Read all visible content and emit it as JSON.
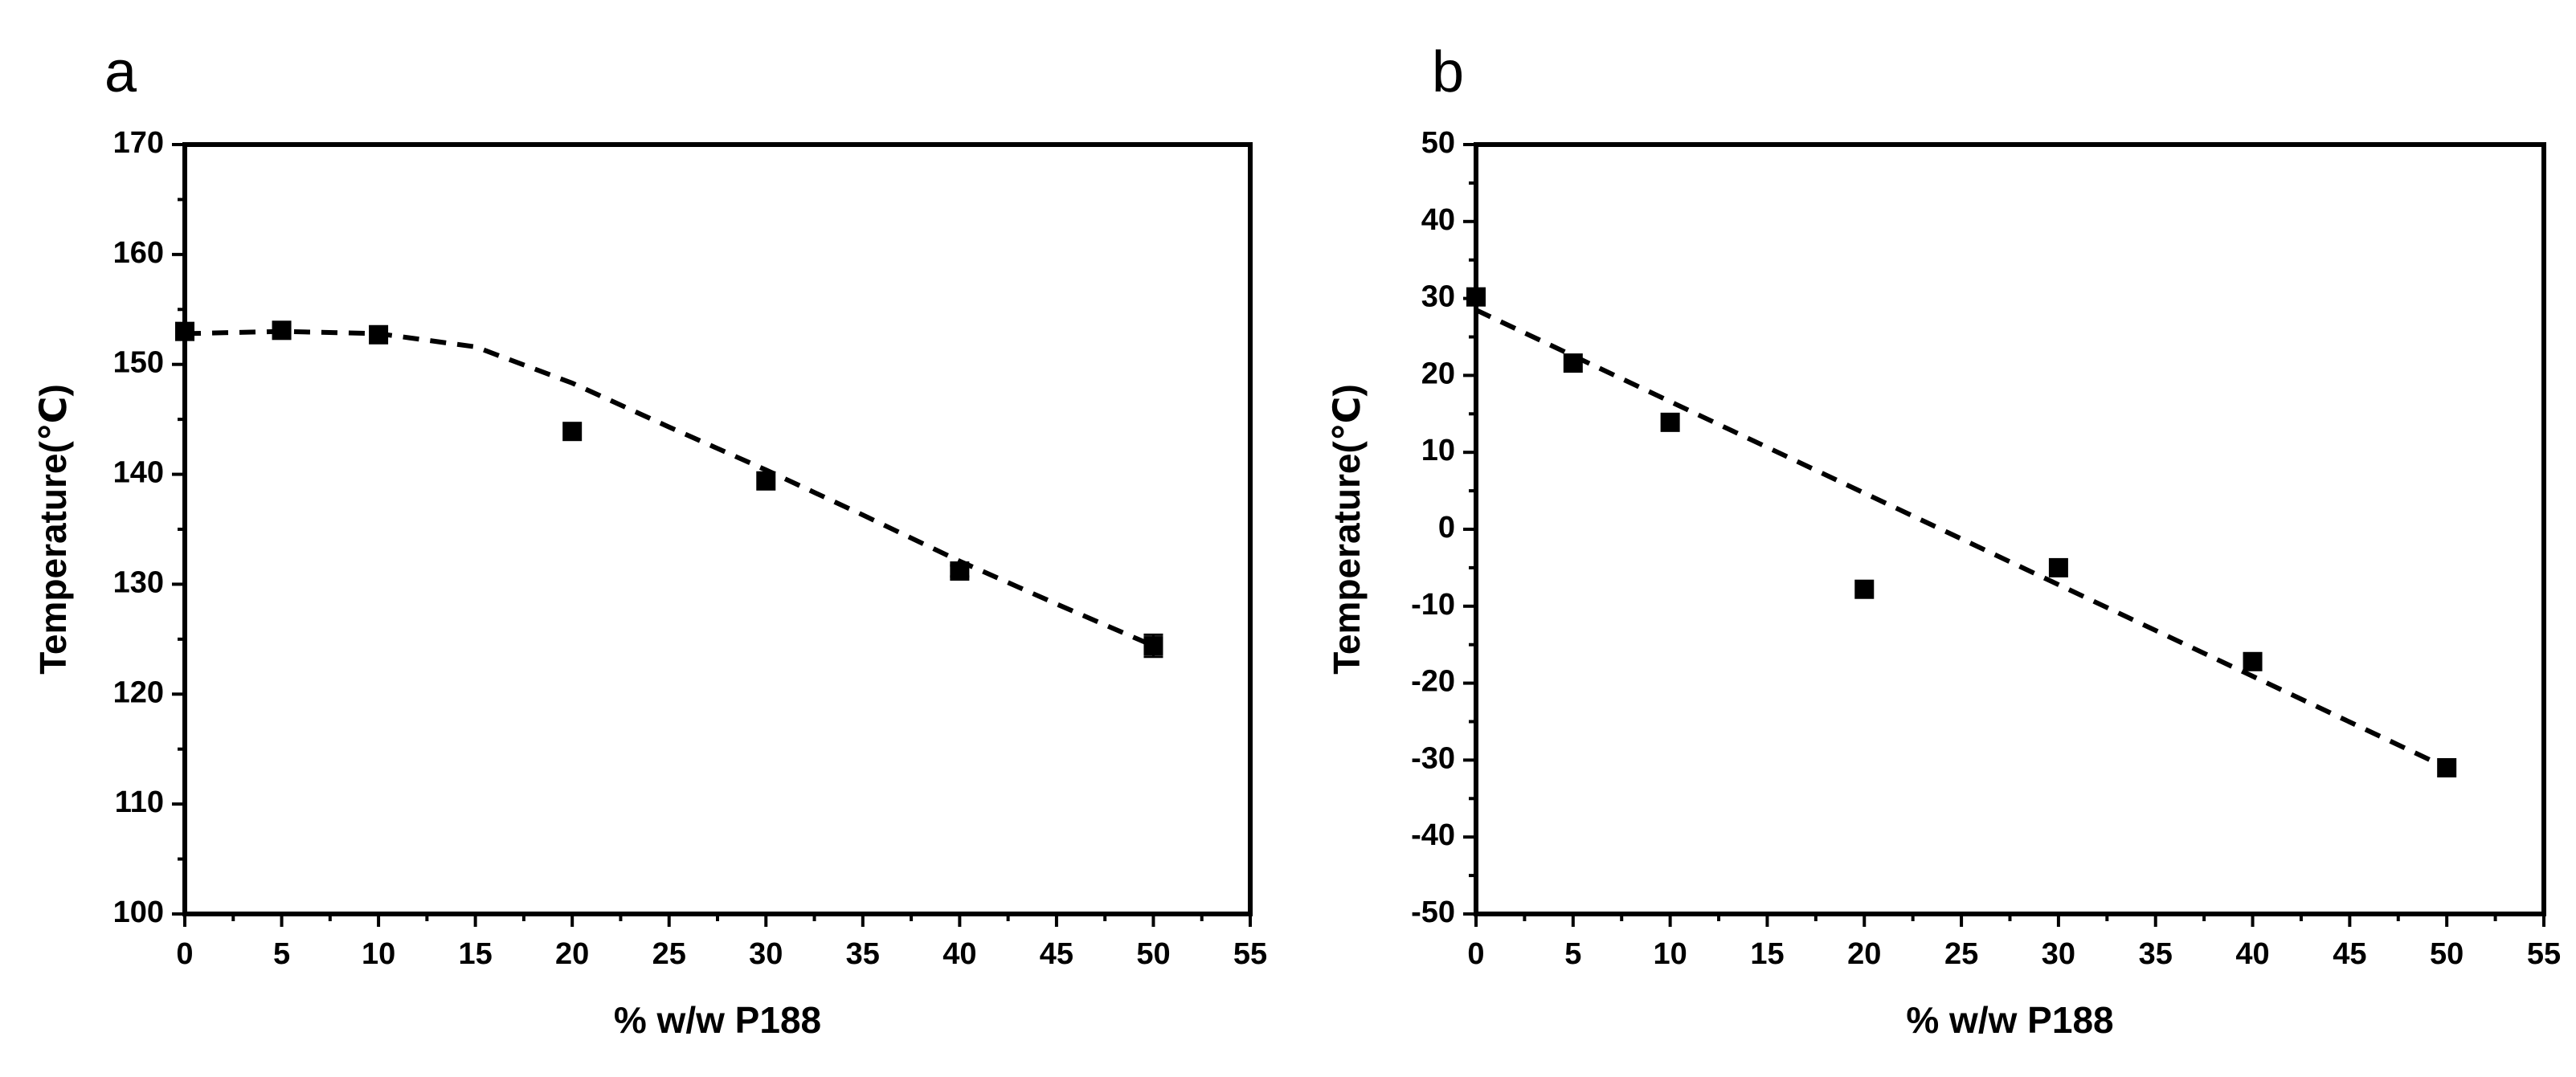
{
  "chart_data": [
    {
      "type": "scatter",
      "panel_label": "a",
      "xlabel": "% w/w P188",
      "ylabel": "Temperature(℃)",
      "xlim": [
        0,
        55
      ],
      "ylim": [
        100,
        170
      ],
      "xticks": [
        "0",
        "5",
        "10",
        "15",
        "20",
        "25",
        "30",
        "35",
        "40",
        "45",
        "50",
        "55"
      ],
      "yticks": [
        "100",
        "110",
        "120",
        "130",
        "140",
        "150",
        "160",
        "170"
      ],
      "grid": false,
      "series": [
        {
          "kind": "points",
          "marker": "square",
          "x": [
            0,
            5,
            10,
            20,
            30,
            40,
            50
          ],
          "y": [
            153.0,
            153.1,
            152.7,
            143.9,
            139.4,
            131.2,
            124.4
          ],
          "error": [
            0,
            0,
            0,
            0,
            0,
            0.5,
            1.0
          ]
        },
        {
          "kind": "fit",
          "style": "dashed",
          "x": [
            0,
            5,
            10,
            15,
            20,
            25,
            30,
            35,
            40,
            45,
            50
          ],
          "y": [
            152.8,
            153.0,
            152.8,
            151.6,
            148.3,
            144.3,
            140.4,
            136.3,
            132.1,
            128.2,
            124.4
          ]
        }
      ]
    },
    {
      "type": "scatter",
      "panel_label": "b",
      "xlabel": "% w/w P188",
      "ylabel": "Temperature(℃)",
      "xlim": [
        0,
        55
      ],
      "ylim": [
        -50,
        50
      ],
      "xticks": [
        "0",
        "5",
        "10",
        "15",
        "20",
        "25",
        "30",
        "35",
        "40",
        "45",
        "50",
        "55"
      ],
      "yticks": [
        "-50",
        "-40",
        "-30",
        "-20",
        "-10",
        "0",
        "10",
        "20",
        "30",
        "40",
        "50"
      ],
      "grid": false,
      "series": [
        {
          "kind": "points",
          "marker": "square",
          "x": [
            0,
            5,
            10,
            20,
            30,
            40,
            50
          ],
          "y": [
            30.2,
            21.6,
            13.9,
            -7.8,
            -5.0,
            -17.2,
            -31.0
          ],
          "error": [
            0,
            0,
            0,
            0,
            0,
            0,
            0
          ]
        },
        {
          "kind": "fit",
          "style": "dashed",
          "x": [
            0,
            50
          ],
          "y": [
            28.5,
            -31.0
          ]
        }
      ]
    }
  ]
}
